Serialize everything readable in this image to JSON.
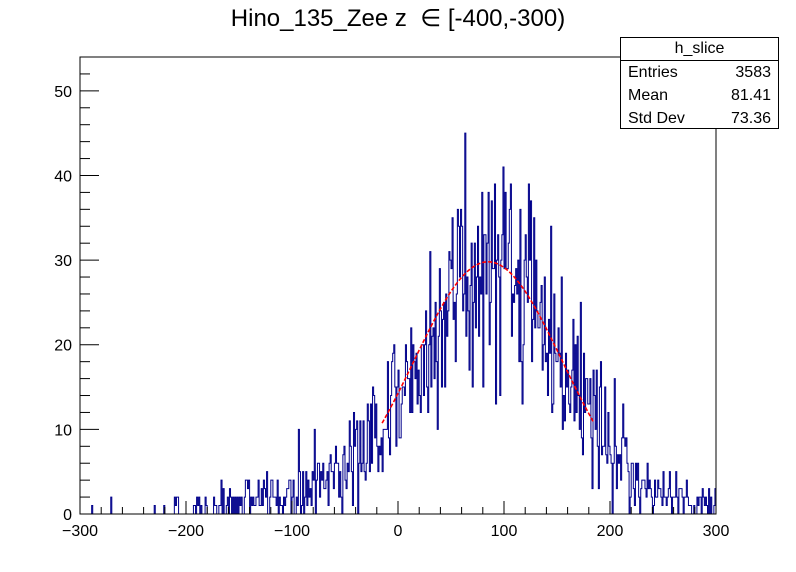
{
  "title_text": "Hino_135_Zee z  ∈ [-400,-300)",
  "stats_box": {
    "name": "h_slice",
    "entries_label": "Entries",
    "entries_value": "3583",
    "mean_label": "Mean",
    "mean_value": "81.41",
    "stddev_label": "Std Dev",
    "stddev_value": "73.36"
  },
  "colors": {
    "histogram": "#00008b",
    "fit": "#ff0000",
    "axis": "#000000"
  },
  "chart_data": {
    "type": "histogram",
    "title": "Hino_135_Zee z  ∈ [-400,-300)",
    "xlabel": "",
    "ylabel": "",
    "xlim": [
      -300,
      300
    ],
    "ylim": [
      0,
      54
    ],
    "x_ticks": [
      -300,
      -200,
      -100,
      0,
      100,
      200,
      300
    ],
    "y_ticks": [
      0,
      10,
      20,
      30,
      40,
      50
    ],
    "grid": false,
    "legend": "none",
    "bins": 600,
    "entries": 3583,
    "mean": 81.41,
    "std_dev": 73.36,
    "envelope": {
      "x": [
        -300,
        -280,
        -260,
        -240,
        -220,
        -200,
        -180,
        -160,
        -140,
        -120,
        -100,
        -80,
        -60,
        -40,
        -20,
        0,
        20,
        40,
        60,
        80,
        100,
        120,
        140,
        160,
        180,
        200,
        220,
        240,
        260,
        280,
        300
      ],
      "y": [
        0.5,
        0.3,
        0.2,
        0.3,
        0.4,
        0.5,
        0.8,
        1.0,
        1.5,
        2.0,
        2.5,
        3.5,
        5.0,
        7.0,
        10.0,
        13.5,
        18.0,
        23.0,
        27.0,
        29.5,
        29.5,
        27.5,
        23.0,
        17.5,
        12.5,
        8.0,
        5.0,
        3.0,
        2.0,
        1.5,
        1.2
      ]
    },
    "fit": {
      "name": "gaussian fit",
      "x_range": [
        -15,
        185
      ],
      "amplitude": 29.8,
      "mean": 85,
      "sigma": 70
    }
  }
}
